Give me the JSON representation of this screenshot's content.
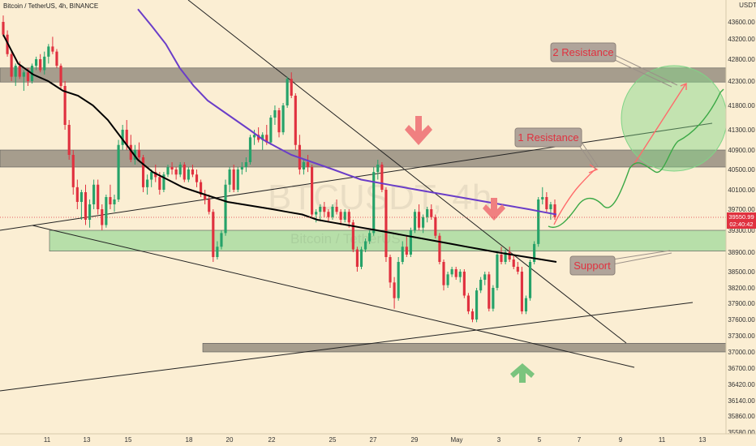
{
  "header": {
    "title": "Bitcoin / TetherUS, 4h, BINANCE",
    "currency": "USDT"
  },
  "watermark": {
    "symbol": "BTCUSDT, 4h",
    "name": "Bitcoin / TetherUS"
  },
  "current_price": {
    "price": "39550.99",
    "countdown": "02:40:42",
    "color": "#e0313f"
  },
  "annotations": {
    "resistance_2": "2 Resistance",
    "resistance_1": "1 Resistance",
    "support": "Support"
  },
  "colors": {
    "background": "#fbeed3",
    "bull": "#26a269",
    "bear": "#e0313f",
    "ma_fast": "#000000",
    "ma_slow": "#6a3dc8",
    "zone_grey": "#8a8175",
    "zone_green": "#7fd486",
    "projection_red": "#ff6b6b",
    "projection_green": "#3aa845"
  },
  "chart_data": {
    "type": "candlestick",
    "title": "Bitcoin / TetherUS, 4h, BINANCE",
    "y_axis": {
      "unit": "USDT",
      "range": [
        35580,
        43950
      ],
      "ticks": [
        43600,
        43200,
        42800,
        42300,
        41800,
        41300,
        40900,
        40500,
        40100,
        39700,
        39300,
        38900,
        38500,
        38200,
        37900,
        37600,
        37300,
        37000,
        36700,
        36420,
        36140,
        35860,
        35580
      ],
      "tick_labels": [
        "43600.00",
        "43200.00",
        "42800.00",
        "42300.00",
        "41800.00",
        "41300.00",
        "40900.00",
        "40500.00",
        "40100.00",
        "39700.00",
        "39300.00",
        "38900.00",
        "38500.00",
        "38200.00",
        "37900.00",
        "37600.00",
        "37300.00",
        "37000.00",
        "36700.00",
        "36420.00",
        "36140.00",
        "35860.00",
        "35580.00"
      ]
    },
    "x_axis": {
      "ticks": [
        11,
        13,
        15,
        18,
        20,
        22,
        25,
        27,
        29,
        "May",
        3,
        5,
        7,
        9,
        11,
        13
      ],
      "tick_labels": [
        "11",
        "13",
        "15",
        "18",
        "20",
        "22",
        "25",
        "27",
        "29",
        "May",
        "3",
        "5",
        "7",
        "9",
        "11",
        "13"
      ]
    },
    "grid": false,
    "candles": [
      [
        43600,
        43750,
        43250,
        43300
      ],
      [
        43300,
        43400,
        42850,
        42900
      ],
      [
        42900,
        42950,
        42300,
        42400
      ],
      [
        42400,
        42700,
        42200,
        42650
      ],
      [
        42650,
        42750,
        42350,
        42400
      ],
      [
        42400,
        42550,
        42100,
        42500
      ],
      [
        42500,
        42600,
        42200,
        42300
      ],
      [
        42300,
        42700,
        42250,
        42650
      ],
      [
        42650,
        42850,
        42550,
        42800
      ],
      [
        42800,
        42900,
        42500,
        42550
      ],
      [
        42550,
        42950,
        42450,
        42850
      ],
      [
        42850,
        43100,
        42700,
        43050
      ],
      [
        43050,
        43250,
        42900,
        42950
      ],
      [
        42950,
        43000,
        42600,
        42650
      ],
      [
        42650,
        42700,
        42150,
        42200
      ],
      [
        42200,
        42300,
        41300,
        41400
      ],
      [
        41400,
        41500,
        40700,
        40800
      ],
      [
        40800,
        40900,
        40000,
        40150
      ],
      [
        40150,
        40300,
        39700,
        39850
      ],
      [
        39850,
        40100,
        39500,
        40050
      ],
      [
        40050,
        40200,
        39400,
        39500
      ],
      [
        39500,
        39900,
        39350,
        39800
      ],
      [
        39800,
        40300,
        39700,
        40200
      ],
      [
        40200,
        40300,
        39600,
        39700
      ],
      [
        39700,
        39800,
        39300,
        39400
      ],
      [
        39400,
        40000,
        39350,
        39950
      ],
      [
        39950,
        40200,
        39700,
        39800
      ],
      [
        39800,
        40000,
        39650,
        39900
      ],
      [
        39900,
        41100,
        39850,
        41000
      ],
      [
        41000,
        41400,
        40900,
        41300
      ],
      [
        41300,
        41500,
        40900,
        41000
      ],
      [
        41000,
        41200,
        40650,
        40700
      ],
      [
        40700,
        41000,
        40600,
        40900
      ],
      [
        40900,
        41050,
        40650,
        40750
      ],
      [
        40750,
        40800,
        40050,
        40150
      ],
      [
        40150,
        40400,
        40000,
        40300
      ],
      [
        40300,
        40500,
        40150,
        40450
      ],
      [
        40450,
        40600,
        40250,
        40350
      ],
      [
        40350,
        40450,
        40000,
        40100
      ],
      [
        40100,
        40450,
        40050,
        40400
      ],
      [
        40400,
        40600,
        40350,
        40550
      ],
      [
        40550,
        40650,
        40400,
        40500
      ],
      [
        40500,
        40550,
        40300,
        40400
      ],
      [
        40400,
        40650,
        40350,
        40600
      ],
      [
        40600,
        40650,
        40250,
        40300
      ],
      [
        40300,
        40550,
        40250,
        40500
      ],
      [
        40500,
        40600,
        40350,
        40400
      ],
      [
        40400,
        40500,
        40150,
        40250
      ],
      [
        40250,
        40300,
        39950,
        40000
      ],
      [
        40000,
        40100,
        39800,
        39900
      ],
      [
        39900,
        40000,
        39600,
        39650
      ],
      [
        39650,
        39700,
        38700,
        38800
      ],
      [
        38800,
        39100,
        38750,
        39000
      ],
      [
        39000,
        39300,
        38950,
        39250
      ],
      [
        39250,
        40300,
        39200,
        40200
      ],
      [
        40200,
        40550,
        40050,
        40500
      ],
      [
        40500,
        40600,
        40050,
        40100
      ],
      [
        40100,
        40550,
        40050,
        40500
      ],
      [
        40500,
        40650,
        40400,
        40550
      ],
      [
        40550,
        40750,
        40450,
        40650
      ],
      [
        40650,
        41200,
        40600,
        41150
      ],
      [
        41150,
        41300,
        41000,
        41200
      ],
      [
        41200,
        41350,
        41050,
        41100
      ],
      [
        41100,
        41250,
        40900,
        41200
      ],
      [
        41200,
        41400,
        41000,
        41050
      ],
      [
        41050,
        41600,
        41000,
        41550
      ],
      [
        41550,
        41800,
        41400,
        41700
      ],
      [
        41700,
        41750,
        41150,
        41250
      ],
      [
        41250,
        41850,
        41200,
        41800
      ],
      [
        41800,
        42400,
        41750,
        42350
      ],
      [
        42350,
        42500,
        41950,
        42000
      ],
      [
        42000,
        42050,
        40900,
        41000
      ],
      [
        41000,
        41200,
        40400,
        40500
      ],
      [
        40500,
        40700,
        40400,
        40650
      ],
      [
        40650,
        40800,
        40450,
        40550
      ],
      [
        40550,
        40600,
        39550,
        39600
      ],
      [
        39600,
        39700,
        39450,
        39650
      ],
      [
        39650,
        39800,
        39500,
        39750
      ],
      [
        39750,
        39850,
        39550,
        39650
      ],
      [
        39650,
        39700,
        39450,
        39550
      ],
      [
        39550,
        39800,
        39500,
        39750
      ],
      [
        39750,
        39900,
        39600,
        39650
      ],
      [
        39650,
        39700,
        39400,
        39500
      ],
      [
        39500,
        39700,
        39450,
        39650
      ],
      [
        39650,
        39700,
        39350,
        39450
      ],
      [
        39450,
        39500,
        38900,
        38950
      ],
      [
        38950,
        39000,
        38500,
        38600
      ],
      [
        38600,
        39000,
        38550,
        38950
      ],
      [
        38950,
        39150,
        38900,
        39100
      ],
      [
        39100,
        39300,
        39050,
        39250
      ],
      [
        39250,
        40550,
        39200,
        40450
      ],
      [
        40450,
        40700,
        40300,
        40600
      ],
      [
        40600,
        40650,
        40050,
        40100
      ],
      [
        40100,
        40150,
        38700,
        38800
      ],
      [
        38800,
        38850,
        38200,
        38300
      ],
      [
        38300,
        38400,
        37800,
        38000
      ],
      [
        38000,
        38800,
        37950,
        38700
      ],
      [
        38700,
        39100,
        38650,
        39000
      ],
      [
        39000,
        39200,
        38800,
        38850
      ],
      [
        38850,
        39350,
        38800,
        39300
      ],
      [
        39300,
        39700,
        39250,
        39650
      ],
      [
        39650,
        39800,
        39300,
        39350
      ],
      [
        39350,
        39600,
        39250,
        39550
      ],
      [
        39550,
        39750,
        39450,
        39700
      ],
      [
        39700,
        39800,
        39500,
        39550
      ],
      [
        39550,
        39600,
        39150,
        39200
      ],
      [
        39200,
        39250,
        38650,
        38700
      ],
      [
        38700,
        38750,
        38150,
        38250
      ],
      [
        38250,
        38500,
        38200,
        38450
      ],
      [
        38450,
        38600,
        38400,
        38550
      ],
      [
        38550,
        38600,
        38350,
        38400
      ],
      [
        38400,
        38550,
        38300,
        38500
      ],
      [
        38500,
        38550,
        38000,
        38050
      ],
      [
        38050,
        38100,
        37700,
        37750
      ],
      [
        37750,
        37800,
        37550,
        37600
      ],
      [
        37600,
        38200,
        37550,
        38150
      ],
      [
        38150,
        38400,
        38100,
        38350
      ],
      [
        38350,
        38500,
        38250,
        38450
      ],
      [
        38450,
        38500,
        37750,
        37800
      ],
      [
        37800,
        38250,
        37750,
        38200
      ],
      [
        38200,
        38900,
        38150,
        38850
      ],
      [
        38850,
        39000,
        38650,
        38700
      ],
      [
        38700,
        38950,
        38650,
        38900
      ],
      [
        38900,
        39000,
        38700,
        38750
      ],
      [
        38750,
        38850,
        38550,
        38600
      ],
      [
        38600,
        38700,
        38450,
        38500
      ],
      [
        38500,
        38600,
        37700,
        37750
      ],
      [
        37750,
        38050,
        37700,
        38000
      ],
      [
        38000,
        38750,
        37950,
        38700
      ],
      [
        38700,
        39100,
        38650,
        39050
      ],
      [
        39050,
        39950,
        39000,
        39900
      ],
      [
        39900,
        40150,
        39800,
        39950
      ],
      [
        39950,
        40050,
        39650,
        39700
      ],
      [
        39700,
        39850,
        39500,
        39800
      ],
      [
        39800,
        39900,
        39500,
        39550
      ]
    ],
    "series": [
      {
        "name": "",
        "values": [
          43300,
          42700,
          42450,
          42300,
          42100,
          42000,
          41800,
          41500,
          41100,
          40700,
          40450,
          40300,
          40150,
          40050,
          39950,
          39850,
          39800,
          39750,
          39700,
          39650,
          39600,
          39500,
          39450,
          39400,
          39350,
          39300,
          39250,
          39200,
          39150,
          39100,
          39050,
          39000,
          38950,
          38900,
          38850,
          38800,
          38750,
          38700
        ]
      },
      {
        "name": "",
        "values": [
          43900,
          43500,
          43100,
          42600,
          42200,
          41900,
          41700,
          41500,
          41300,
          41100,
          40950,
          40800,
          40700,
          40600,
          40500,
          40400,
          40300,
          40250,
          40200,
          40150,
          40100,
          40050,
          40000,
          39950,
          39900,
          39850,
          39800,
          39750,
          39700,
          39650,
          39600
        ]
      }
    ],
    "zones": [
      {
        "label": "2 Resistance",
        "low": 42280,
        "high": 42600
      },
      {
        "label": "1 Resistance",
        "low": 40550,
        "high": 40900
      },
      {
        "label": "Support",
        "low": 38920,
        "high": 39300
      },
      {
        "label": "",
        "low": 37000,
        "high": 37160
      }
    ]
  }
}
